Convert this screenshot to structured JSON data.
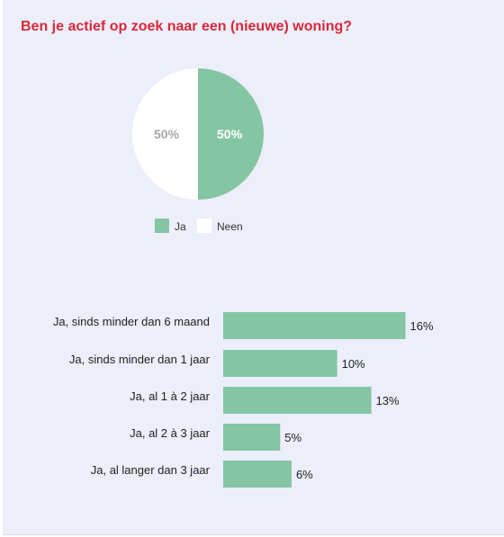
{
  "colors": {
    "title": "#d9293a",
    "ja": "#84c5a4",
    "neen": "#ffffff",
    "bar": "#84c5a4",
    "panel": "#eceef9"
  },
  "chart_data": [
    {
      "type": "pie",
      "title": "Ben je actief op zoek naar een (nieuwe) woning?",
      "slices": [
        {
          "name": "Ja",
          "value": 50,
          "label": "50%"
        },
        {
          "name": "Neen",
          "value": 50,
          "label": "50%"
        }
      ],
      "legend": [
        "Ja",
        "Neen"
      ],
      "legend_position": "bottom"
    },
    {
      "type": "bar",
      "orientation": "horizontal",
      "categories": [
        "Ja, sinds minder dan 6 maand",
        "Ja, sinds minder dan 1 jaar",
        "Ja, al 1 à 2 jaar",
        "Ja, al 2 à 3 jaar",
        "Ja, al langer dan 3 jaar"
      ],
      "values": [
        16,
        10,
        13,
        5,
        6
      ],
      "value_labels": [
        "16%",
        "10%",
        "13%",
        "5%",
        "6%"
      ],
      "unit": "%"
    }
  ]
}
